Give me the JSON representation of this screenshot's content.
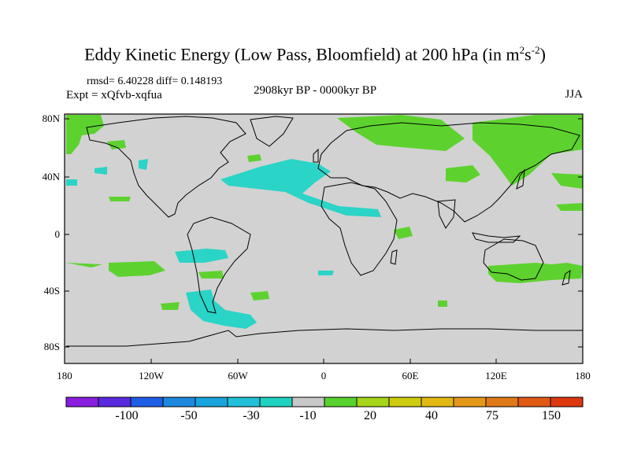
{
  "title": {
    "prefix": "Eddy Kinetic Energy (Low Pass, Bloomfield) at 200 hPa (in m",
    "sup1": "2",
    "mid": "s",
    "sup2": "-2",
    "suffix": ")"
  },
  "stats": {
    "line": "rmsd= 6.40228 diff= 0.148193"
  },
  "experiment": "Expt = xQfvb-xqfua",
  "period": "2908kyr BP - 0000kyr BP",
  "season": "JJA",
  "y_axis": {
    "labels": [
      "80N",
      "40N",
      "0",
      "40S",
      "80S"
    ]
  },
  "x_axis": {
    "labels": [
      "180",
      "120W",
      "60W",
      "0",
      "60E",
      "120E",
      "180"
    ]
  },
  "colorbar": {
    "colors": [
      "#8a1ee0",
      "#5a2ae0",
      "#1e5ee6",
      "#1e88e0",
      "#18a4dc",
      "#20c0d8",
      "#20d2c0",
      "#c8c8c8",
      "#58d22e",
      "#a6d418",
      "#cfcc10",
      "#e2b812",
      "#e49818",
      "#e07a18",
      "#e05a14",
      "#dc3810"
    ],
    "labels": [
      "-100",
      "-50",
      "-30",
      "-10",
      "20",
      "40",
      "75",
      "150"
    ]
  },
  "legend_colors": {
    "green": "#5dd22e",
    "cyan": "#2ad4c6",
    "land_bg": "#d2d2d2"
  }
}
